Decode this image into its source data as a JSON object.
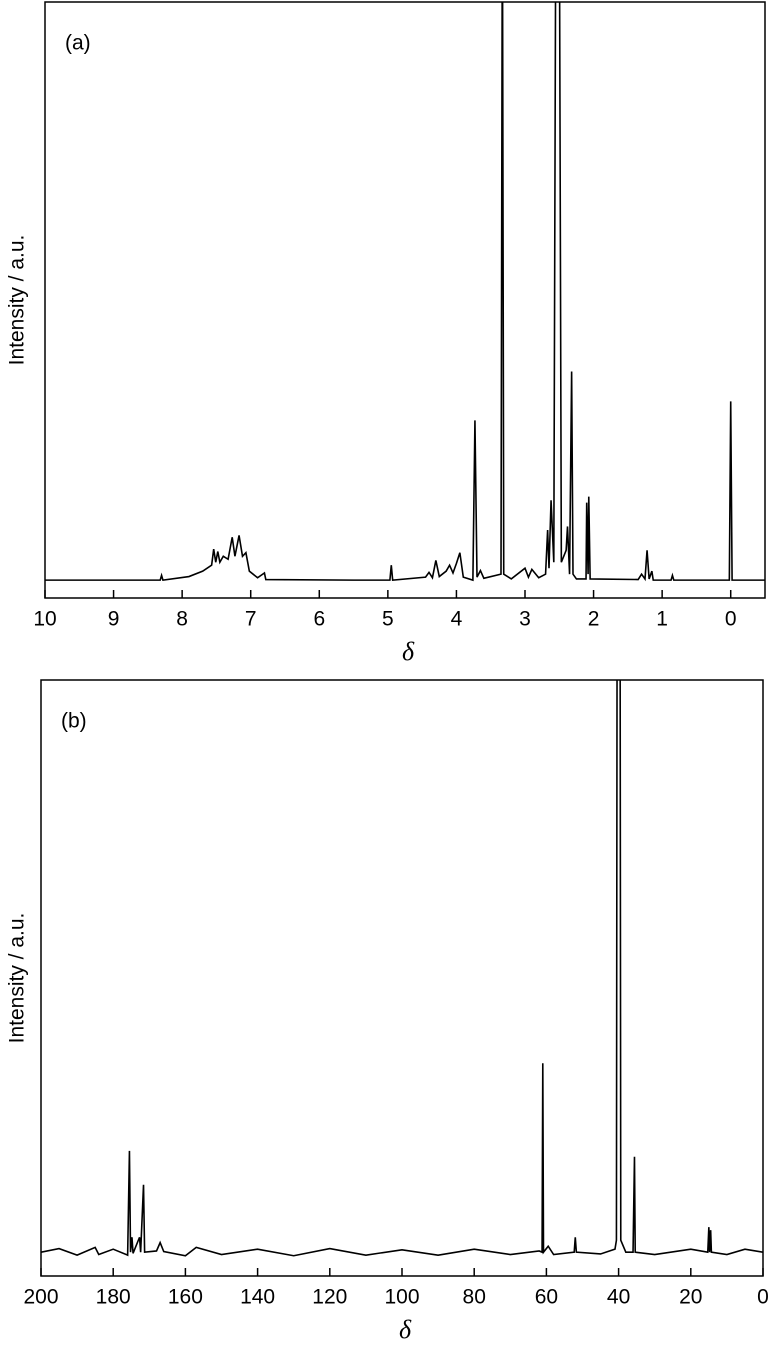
{
  "chart_data": [
    {
      "type": "line",
      "label": "(a)",
      "ylabel": "Intensity / a.u.",
      "xlabel": "δ",
      "color": "#000000",
      "xlim": [
        10,
        -0.5
      ],
      "ylim": [
        0,
        100
      ],
      "xticks": [
        10,
        9,
        8,
        7,
        6,
        5,
        4,
        3,
        2,
        1,
        0
      ],
      "x": [
        10,
        8.32,
        8.3,
        8.28,
        7.9,
        7.7,
        7.57,
        7.54,
        7.51,
        7.48,
        7.45,
        7.4,
        7.33,
        7.27,
        7.23,
        7.17,
        7.12,
        7.07,
        7.02,
        6.9,
        6.8,
        6.78,
        5.5,
        4.97,
        4.95,
        4.93,
        4.45,
        4.4,
        4.35,
        4.3,
        4.25,
        4.15,
        4.1,
        4.05,
        4.0,
        3.95,
        3.9,
        3.76,
        3.73,
        3.7,
        3.65,
        3.6,
        3.35,
        3.33,
        3.31,
        3.2,
        3.0,
        2.95,
        2.9,
        2.8,
        2.7,
        2.67,
        2.65,
        2.62,
        2.58,
        2.55,
        2.5,
        2.47,
        2.4,
        2.38,
        2.35,
        2.32,
        2.3,
        2.25,
        2.11,
        2.1,
        2.08,
        2.07,
        2.05,
        1.35,
        1.3,
        1.25,
        1.22,
        1.19,
        1.15,
        1.13,
        0.87,
        0.85,
        0.83,
        0.02,
        0,
        -0.02,
        -0.5
      ],
      "values": [
        3,
        3,
        3.8,
        3,
        3.6,
        4.5,
        5.5,
        8.2,
        6,
        7.8,
        6,
        7,
        6.5,
        10.2,
        7,
        10.5,
        7,
        7.6,
        4.5,
        3.4,
        4.2,
        3.1,
        3,
        3,
        5.5,
        3,
        3.5,
        4.3,
        3.4,
        6.3,
        3.6,
        4.5,
        5.5,
        4.2,
        5.8,
        7.6,
        3.5,
        3,
        29.8,
        3.5,
        4.6,
        3.3,
        4,
        120,
        4,
        3.2,
        5,
        3.5,
        4.8,
        3.4,
        4,
        11.4,
        5,
        16.4,
        6,
        120,
        120,
        6,
        8,
        12,
        4,
        38,
        4,
        3.2,
        3.2,
        16,
        4,
        17,
        3.2,
        3.1,
        4,
        3.2,
        8,
        3.2,
        4.5,
        3,
        3,
        3.8,
        3,
        3,
        33,
        3,
        3
      ]
    },
    {
      "type": "line",
      "label": "(b)",
      "ylabel": "Intensity / a.u.",
      "xlabel": "δ",
      "color": "#000000",
      "xlim": [
        200,
        0
      ],
      "ylim": [
        0,
        100
      ],
      "xticks": [
        200,
        180,
        160,
        140,
        120,
        100,
        80,
        60,
        40,
        20,
        0
      ],
      "x": [
        200,
        195,
        190,
        185,
        184,
        180,
        176,
        175.5,
        175.2,
        174.8,
        174.5,
        172.7,
        172.4,
        171.6,
        171.3,
        168,
        167,
        166,
        160,
        157,
        150,
        140,
        130,
        120,
        110,
        100,
        90,
        80,
        70,
        62,
        61.2,
        61,
        60.8,
        59.5,
        58,
        52.3,
        52,
        51.7,
        45,
        41,
        40.6,
        40.4,
        39.6,
        39.4,
        38,
        36,
        35.6,
        35.4,
        30,
        20,
        15.3,
        15,
        14.8,
        14.5,
        14.3,
        10,
        5,
        0
      ],
      "values": [
        4,
        4.6,
        3.5,
        4.8,
        3.6,
        4.5,
        3.5,
        21,
        4,
        6.5,
        3.8,
        6.5,
        4,
        15.3,
        4,
        4.2,
        5.6,
        4.1,
        3.4,
        4.8,
        3.6,
        4.5,
        3.4,
        4.6,
        3.5,
        4.4,
        3.5,
        4.5,
        3.6,
        4.2,
        4,
        35.7,
        4,
        5,
        3.6,
        4,
        6.5,
        4,
        3.7,
        4.5,
        6,
        120,
        120,
        6,
        4,
        4,
        20,
        4,
        3.6,
        4.5,
        4,
        8.2,
        4,
        7.7,
        4,
        3.6,
        4.5,
        4
      ]
    }
  ]
}
